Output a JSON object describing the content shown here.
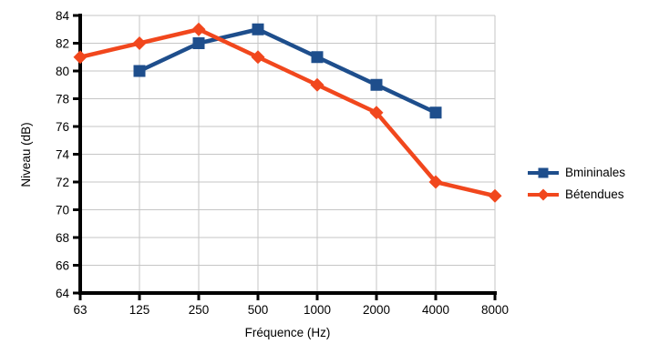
{
  "chart_data": {
    "type": "line",
    "title": "",
    "xlabel": "Fréquence (Hz)",
    "ylabel": "Niveau (dB)",
    "categories": [
      "63",
      "125",
      "250",
      "500",
      "1000",
      "2000",
      "4000",
      "8000"
    ],
    "ylim": [
      64,
      84
    ],
    "ytick_step": 2,
    "grid": true,
    "legend_position": "right",
    "series": [
      {
        "name": "Bmininales",
        "color": "#1E4E8C",
        "marker": "square",
        "values": [
          null,
          80,
          82,
          83,
          81,
          79,
          77,
          null
        ]
      },
      {
        "name": "Bétendues",
        "color": "#F1471D",
        "marker": "diamond",
        "values": [
          81,
          82,
          83,
          81,
          79,
          77,
          72,
          71
        ]
      }
    ]
  },
  "colors": {
    "axis": "#000000",
    "grid": "#C6C6C6",
    "text": "#000000",
    "background": "#FFFFFF"
  }
}
